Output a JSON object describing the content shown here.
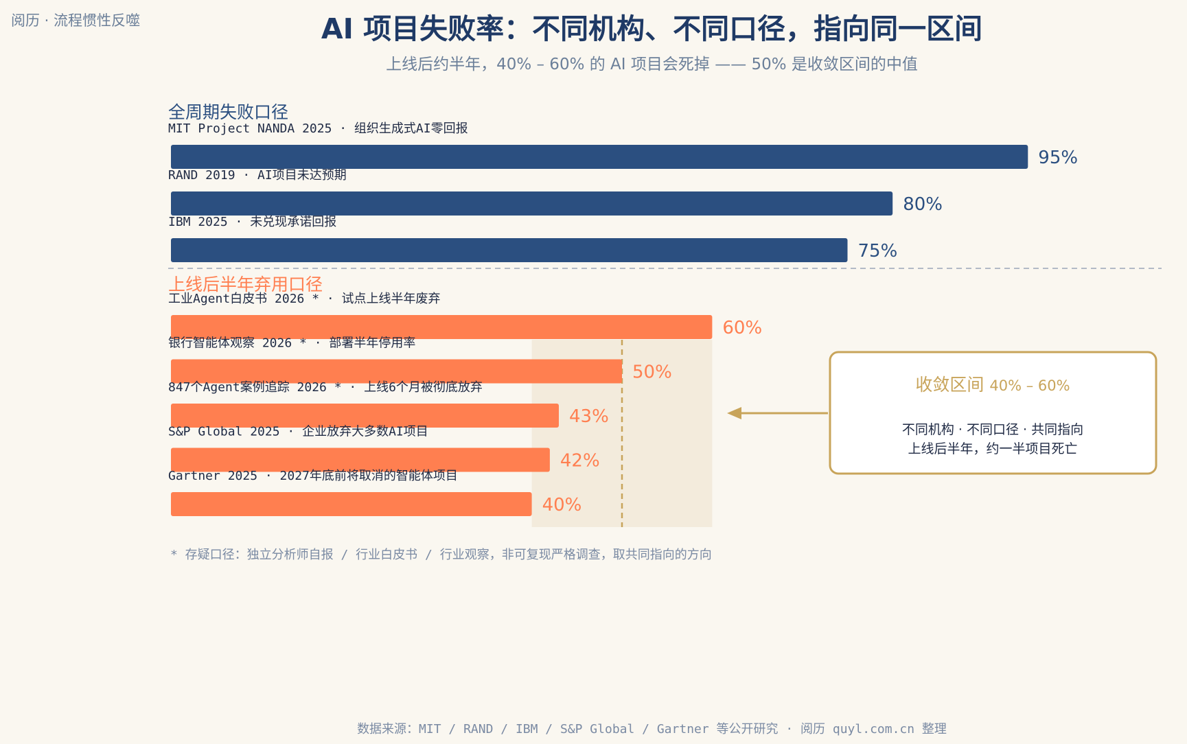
{
  "brand": "阅历 · 流程惯性反噬",
  "title": "AI 项目失败率：不同机构、不同口径，指向同一区间",
  "subtitle": "上线后约半年，40% – 60% 的 AI 项目会死掉 —— 50% 是收敛区间的中值",
  "footnote": "* 存疑口径：独立分析师自报 / 行业白皮书 / 行业观察，非可复现严格调查，取共同指向的方向",
  "source": "数据来源：MIT / RAND / IBM / S&P Global / Gartner 等公开研究 · 阅历 quyl.com.cn 整理",
  "callout": {
    "title": "收敛区间",
    "range": "40% – 60%",
    "line1": "不同机构 · 不同口径 · 共同指向",
    "line2": "上线后半年，约一半项目死亡"
  },
  "colors": {
    "navy": "#2b4f80",
    "orange": "#ff7f50",
    "gold": "#c8a45a",
    "band": "#f3ebdc"
  },
  "chart_data": {
    "type": "bar",
    "orientation": "horizontal",
    "xlim": [
      0,
      100
    ],
    "unit": "%",
    "convergence_band": [
      40,
      60
    ],
    "median_marker": 50,
    "groups": [
      {
        "name": "全周期失败口径",
        "color": "#2b4f80",
        "items": [
          {
            "label": "MIT Project NANDA 2025 · 组织生成式AI零回报",
            "value": 95,
            "value_label": "95%"
          },
          {
            "label": "RAND 2019 · AI项目未达预期",
            "value": 80,
            "value_label": "80%"
          },
          {
            "label": "IBM 2025 · 未兑现承诺回报",
            "value": 75,
            "value_label": "75%"
          }
        ]
      },
      {
        "name": "上线后半年弃用口径",
        "color": "#ff7f50",
        "items": [
          {
            "label": "工业Agent白皮书 2026 * · 试点上线半年废弃",
            "value": 60,
            "value_label": "60%"
          },
          {
            "label": "银行智能体观察 2026 * · 部署半年停用率",
            "value": 50,
            "value_label": "50%"
          },
          {
            "label": "847个Agent案例追踪 2026 * · 上线6个月被彻底放弃",
            "value": 43,
            "value_label": "43%"
          },
          {
            "label": "S&P Global 2025 · 企业放弃大多数AI项目",
            "value": 42,
            "value_label": "42%"
          },
          {
            "label": "Gartner 2025 · 2027年底前将取消的智能体项目",
            "value": 40,
            "value_label": "40%"
          }
        ]
      }
    ]
  }
}
